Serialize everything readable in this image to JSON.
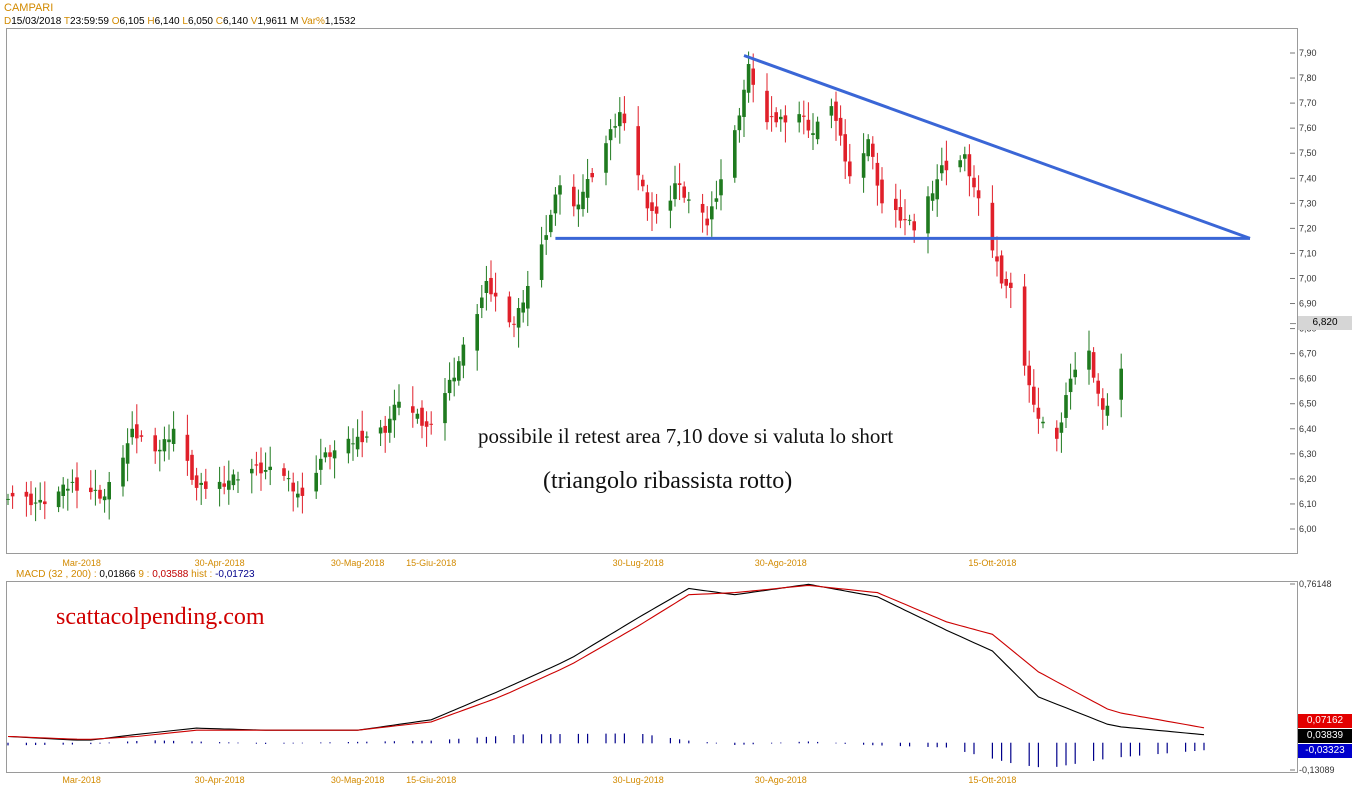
{
  "header": {
    "title": "CAMPARI",
    "d_key": "D",
    "d_val": "15/03/2018",
    "t_key": "T",
    "t_val": "23:59:59",
    "o_key": "O",
    "o_val": "6,105",
    "h_key": "H",
    "h_val": "6,140",
    "l_key": "L",
    "l_val": "6,050",
    "c_key": "C",
    "c_val": "6,140",
    "v_key": "V",
    "v_val": "1,9611 M",
    "var_key": "Var%",
    "var_val": "1,1532"
  },
  "annotations": {
    "line1": "possibile il retest area 7,10 dove si valuta lo short",
    "line2": "(triangolo ribassista rotto)",
    "watermark": "scattacolpending.com"
  },
  "price_labels": {
    "last": "6,820"
  },
  "macd_legend": {
    "name": "MACD",
    "params": "(32 , 200) :",
    "macd_val": "0,01866",
    "signal_key": "9 :",
    "signal_val": "0,03588",
    "hist_key": "hist :",
    "hist_val": "-0,01723"
  },
  "macd_labels": {
    "signal": "0,07162",
    "macd": "0,03839",
    "hist": "-0,03323"
  },
  "colors": {
    "up": "#1f7a1f",
    "down": "#e0202a",
    "trendline": "#3a66d6",
    "macd": "#000000",
    "signal": "#cc0000",
    "hist": "#00008b",
    "axis_date": "#d28a00"
  },
  "chart_data": [
    {
      "type": "candlestick",
      "title": "CAMPARI",
      "ylim": [
        5.95,
        7.95
      ],
      "yticks": [
        "6,00",
        "6,10",
        "6,20",
        "6,30",
        "6,40",
        "6,50",
        "6,60",
        "6,70",
        "6,80",
        "6,90",
        "7,00",
        "7,10",
        "7,20",
        "7,30",
        "7,40",
        "7,50",
        "7,60",
        "7,70",
        "7,80",
        "7,90"
      ],
      "x_range": [
        "2018-03-15",
        "2018-11-12"
      ],
      "xticks": [
        {
          "date": "2018-03-31",
          "label": "Mar-2018"
        },
        {
          "date": "2018-04-30",
          "label": "30-Apr-2018"
        },
        {
          "date": "2018-05-30",
          "label": "30-Mag-2018"
        },
        {
          "date": "2018-06-15",
          "label": "15-Giu-2018"
        },
        {
          "date": "2018-07-30",
          "label": "30-Lug-2018"
        },
        {
          "date": "2018-08-30",
          "label": "30-Ago-2018"
        },
        {
          "date": "2018-10-15",
          "label": "15-Ott-2018"
        }
      ],
      "anchors": [
        {
          "date": "2018-03-15",
          "close": 6.14
        },
        {
          "date": "2018-03-22",
          "close": 6.1
        },
        {
          "date": "2018-03-29",
          "close": 6.18
        },
        {
          "date": "2018-04-05",
          "close": 6.13
        },
        {
          "date": "2018-04-11",
          "close": 6.38
        },
        {
          "date": "2018-04-17",
          "close": 6.32
        },
        {
          "date": "2018-04-20",
          "close": 6.4
        },
        {
          "date": "2018-04-25",
          "close": 6.16
        },
        {
          "date": "2018-04-30",
          "close": 6.18
        },
        {
          "date": "2018-05-07",
          "close": 6.24
        },
        {
          "date": "2018-05-14",
          "close": 6.22
        },
        {
          "date": "2018-05-18",
          "close": 6.12
        },
        {
          "date": "2018-05-22",
          "close": 6.28
        },
        {
          "date": "2018-05-30",
          "close": 6.36
        },
        {
          "date": "2018-06-05",
          "close": 6.4
        },
        {
          "date": "2018-06-08",
          "close": 6.52
        },
        {
          "date": "2018-06-14",
          "close": 6.4
        },
        {
          "date": "2018-06-20",
          "close": 6.62
        },
        {
          "date": "2018-06-27",
          "close": 6.97
        },
        {
          "date": "2018-07-03",
          "close": 6.82
        },
        {
          "date": "2018-07-09",
          "close": 7.12
        },
        {
          "date": "2018-07-13",
          "close": 7.38
        },
        {
          "date": "2018-07-16",
          "close": 7.28
        },
        {
          "date": "2018-07-20",
          "close": 7.42
        },
        {
          "date": "2018-07-26",
          "close": 7.66
        },
        {
          "date": "2018-08-01",
          "close": 7.3
        },
        {
          "date": "2018-08-04",
          "close": 7.22
        },
        {
          "date": "2018-08-07",
          "close": 7.38
        },
        {
          "date": "2018-08-14",
          "close": 7.22
        },
        {
          "date": "2018-08-20",
          "close": 7.58
        },
        {
          "date": "2018-08-23",
          "close": 7.84
        },
        {
          "date": "2018-08-27",
          "close": 7.62
        },
        {
          "date": "2018-09-03",
          "close": 7.66
        },
        {
          "date": "2018-09-06",
          "close": 7.58
        },
        {
          "date": "2018-09-10",
          "close": 7.7
        },
        {
          "date": "2018-09-14",
          "close": 7.4
        },
        {
          "date": "2018-09-18",
          "close": 7.56
        },
        {
          "date": "2018-09-21",
          "close": 7.3
        },
        {
          "date": "2018-09-28",
          "close": 7.2
        },
        {
          "date": "2018-10-04",
          "close": 7.44
        },
        {
          "date": "2018-10-09",
          "close": 7.48
        },
        {
          "date": "2018-10-12",
          "close": 7.3
        },
        {
          "date": "2018-10-17",
          "close": 7.0
        },
        {
          "date": "2018-10-19",
          "close": 6.95
        },
        {
          "date": "2018-10-24",
          "close": 6.48
        },
        {
          "date": "2018-10-29",
          "close": 6.34
        },
        {
          "date": "2018-11-01",
          "close": 6.62
        },
        {
          "date": "2018-11-05",
          "close": 6.7
        },
        {
          "date": "2018-11-08",
          "close": 6.46
        },
        {
          "date": "2018-11-13",
          "close": 6.68
        },
        {
          "date": "2018-11-16",
          "close": 6.62
        },
        {
          "date": "2018-11-21",
          "close": 6.8
        },
        {
          "date": "2018-11-26",
          "close": 6.86
        },
        {
          "date": "2018-11-29",
          "close": 6.82
        }
      ],
      "trendlines": [
        {
          "name": "resistance",
          "from": {
            "date": "2018-08-22",
            "value": 7.89
          },
          "to": {
            "date": "2018-12-10",
            "value": 7.16
          }
        },
        {
          "name": "support",
          "from": {
            "date": "2018-07-12",
            "value": 7.16
          },
          "to": {
            "date": "2018-12-10",
            "value": 7.16
          }
        }
      ],
      "last_price": 6.82
    },
    {
      "type": "line",
      "title": "MACD (32 , 200)",
      "ylim": [
        -0.13089,
        0.76148
      ],
      "yticks": [
        "0,76148",
        "-0,13089"
      ],
      "series": [
        {
          "name": "MACD",
          "anchors": [
            {
              "date": "2018-03-15",
              "value": 0.03
            },
            {
              "date": "2018-04-01",
              "value": 0.01
            },
            {
              "date": "2018-04-12",
              "value": 0.04
            },
            {
              "date": "2018-04-25",
              "value": 0.07
            },
            {
              "date": "2018-05-10",
              "value": 0.06
            },
            {
              "date": "2018-05-30",
              "value": 0.06
            },
            {
              "date": "2018-06-15",
              "value": 0.11
            },
            {
              "date": "2018-06-30",
              "value": 0.25
            },
            {
              "date": "2018-07-15",
              "value": 0.4
            },
            {
              "date": "2018-07-30",
              "value": 0.6
            },
            {
              "date": "2018-08-10",
              "value": 0.74
            },
            {
              "date": "2018-08-20",
              "value": 0.71
            },
            {
              "date": "2018-09-05",
              "value": 0.76
            },
            {
              "date": "2018-09-20",
              "value": 0.7
            },
            {
              "date": "2018-10-05",
              "value": 0.54
            },
            {
              "date": "2018-10-15",
              "value": 0.44
            },
            {
              "date": "2018-10-25",
              "value": 0.22
            },
            {
              "date": "2018-11-10",
              "value": 0.08
            },
            {
              "date": "2018-11-30",
              "value": 0.03839
            }
          ]
        },
        {
          "name": "Signal 9",
          "anchors": [
            {
              "date": "2018-03-15",
              "value": 0.03
            },
            {
              "date": "2018-04-01",
              "value": 0.015
            },
            {
              "date": "2018-04-12",
              "value": 0.03
            },
            {
              "date": "2018-04-25",
              "value": 0.06
            },
            {
              "date": "2018-05-10",
              "value": 0.06
            },
            {
              "date": "2018-05-30",
              "value": 0.06
            },
            {
              "date": "2018-06-15",
              "value": 0.1
            },
            {
              "date": "2018-06-30",
              "value": 0.22
            },
            {
              "date": "2018-07-15",
              "value": 0.37
            },
            {
              "date": "2018-07-30",
              "value": 0.56
            },
            {
              "date": "2018-08-10",
              "value": 0.71
            },
            {
              "date": "2018-08-20",
              "value": 0.72
            },
            {
              "date": "2018-09-05",
              "value": 0.755
            },
            {
              "date": "2018-09-20",
              "value": 0.72
            },
            {
              "date": "2018-10-05",
              "value": 0.58
            },
            {
              "date": "2018-10-15",
              "value": 0.52
            },
            {
              "date": "2018-10-25",
              "value": 0.34
            },
            {
              "date": "2018-11-10",
              "value": 0.15
            },
            {
              "date": "2018-11-30",
              "value": 0.07162
            }
          ]
        }
      ],
      "histogram": {
        "name": "hist",
        "anchors": [
          {
            "date": "2018-03-15",
            "value": -0.01
          },
          {
            "date": "2018-04-01",
            "value": -0.005
          },
          {
            "date": "2018-04-15",
            "value": 0.012
          },
          {
            "date": "2018-05-10",
            "value": -0.003
          },
          {
            "date": "2018-06-15",
            "value": 0.01
          },
          {
            "date": "2018-07-05",
            "value": 0.04
          },
          {
            "date": "2018-07-30",
            "value": 0.045
          },
          {
            "date": "2018-08-10",
            "value": 0.01
          },
          {
            "date": "2018-08-20",
            "value": -0.008
          },
          {
            "date": "2018-09-05",
            "value": 0.006
          },
          {
            "date": "2018-09-20",
            "value": -0.01
          },
          {
            "date": "2018-10-05",
            "value": -0.02
          },
          {
            "date": "2018-10-20",
            "value": -0.1
          },
          {
            "date": "2018-10-27",
            "value": -0.12
          },
          {
            "date": "2018-11-10",
            "value": -0.07
          },
          {
            "date": "2018-11-30",
            "value": -0.03323
          }
        ]
      }
    }
  ]
}
